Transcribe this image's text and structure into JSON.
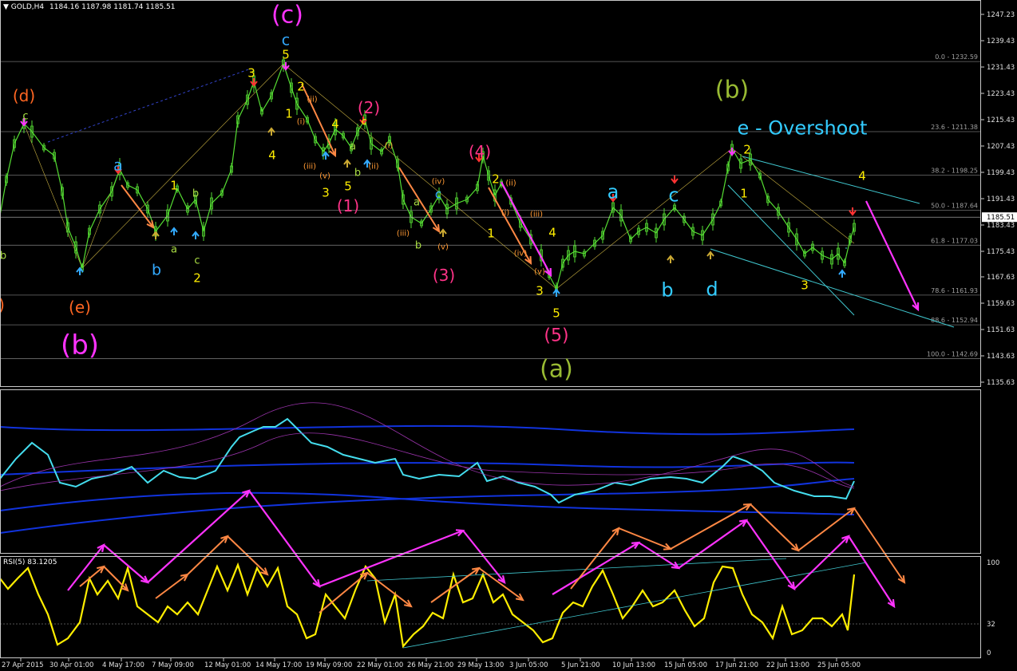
{
  "header": {
    "symbol_label": "GOLD,H4",
    "ohlc": "1184.16 1187.98 1181.74 1185.51",
    "rsi_label": "RSI(5) 83.1205"
  },
  "price_axis": {
    "ticks": [
      "1247.23",
      "1239.43",
      "1231.43",
      "1223.43",
      "1215.43",
      "1207.43",
      "1199.43",
      "1191.43",
      "1183.43",
      "1175.43",
      "1167.63",
      "1159.63",
      "1151.63",
      "1143.63",
      "1135.63"
    ],
    "current_price": "1185.51"
  },
  "rsi_axis": {
    "ticks": [
      "100",
      "32",
      "0"
    ]
  },
  "time_axis": {
    "labels": [
      "27 Apr 2015",
      "30 Apr 01:00",
      "4 May 17:00",
      "7 May 09:00",
      "12 May 01:00",
      "14 May 17:00",
      "19 May 09:00",
      "22 May 01:00",
      "26 May 21:00",
      "29 May 13:00",
      "3 Jun 05:00",
      "5 Jun 21:00",
      "10 Jun 13:00",
      "15 Jun 05:00",
      "17 Jun 21:00",
      "22 Jun 13:00",
      "25 Jun 05:00"
    ]
  },
  "fib_levels": [
    {
      "label": "0.0 - 1232.59",
      "price": 1232.59
    },
    {
      "label": "23.6 - 1211.38",
      "price": 1211.38
    },
    {
      "label": "38.2 - 1198.25",
      "price": 1198.25
    },
    {
      "label": "50.0 - 1187.64",
      "price": 1187.64
    },
    {
      "label": "61.8 - 1177.03",
      "price": 1177.03
    },
    {
      "label": "78.6 - 1161.93",
      "price": 1161.93
    },
    {
      "label": "88.6 - 1152.94",
      "price": 1152.94
    },
    {
      "label": "100.0 - 1142.69",
      "price": 1142.69
    }
  ],
  "wave_labels": [
    {
      "text": "(c)",
      "color": "#ff33ff"
    },
    {
      "text": "c",
      "color": "#33aaff"
    },
    {
      "text": "(d)",
      "color": "#ff6622"
    },
    {
      "text": "c",
      "color": "#aadd44"
    },
    {
      "text": "a",
      "color": "#33aaff"
    },
    {
      "text": "(e)",
      "color": "#ff6622"
    },
    {
      "text": "(b)",
      "color": "#ff33ff"
    },
    {
      "text": "b",
      "color": "#33aaff"
    },
    {
      "text": "a",
      "color": "#aadd44"
    },
    {
      "text": "1",
      "color": "#ffee00"
    },
    {
      "text": "b",
      "color": "#aadd44"
    },
    {
      "text": "c",
      "color": "#aadd44"
    },
    {
      "text": "2",
      "color": "#ffee00"
    },
    {
      "text": "3",
      "color": "#ffee00"
    },
    {
      "text": "5",
      "color": "#ffee00"
    },
    {
      "text": "2",
      "color": "#ffee00"
    },
    {
      "text": "1",
      "color": "#ffee00"
    },
    {
      "text": "4",
      "color": "#ffee00"
    },
    {
      "text": "(i)",
      "color": "#ff9933"
    },
    {
      "text": "(ii)",
      "color": "#ff9933"
    },
    {
      "text": "(iii)",
      "color": "#ff9933"
    },
    {
      "text": "(v)",
      "color": "#ff9933"
    },
    {
      "text": "3",
      "color": "#ffee00"
    },
    {
      "text": "4",
      "color": "#ffee00"
    },
    {
      "text": "5",
      "color": "#ffee00"
    },
    {
      "text": "a",
      "color": "#aadd44"
    },
    {
      "text": "b",
      "color": "#aadd44"
    },
    {
      "text": "(1)",
      "color": "#ff3388"
    },
    {
      "text": "(2)",
      "color": "#ff3388"
    },
    {
      "text": "c",
      "color": "#ffee00"
    },
    {
      "text": "(i)",
      "color": "#ff9933"
    },
    {
      "text": "(ii)",
      "color": "#ff9933"
    },
    {
      "text": "(iii)",
      "color": "#ff9933"
    },
    {
      "text": "a",
      "color": "#aadd44"
    },
    {
      "text": "b",
      "color": "#aadd44"
    },
    {
      "text": "c",
      "color": "#33aaff"
    },
    {
      "text": "(iv)",
      "color": "#ff9933"
    },
    {
      "text": "(v)",
      "color": "#ff9933"
    },
    {
      "text": "(3)",
      "color": "#ff3388"
    },
    {
      "text": "(4)",
      "color": "#ff3388"
    },
    {
      "text": "2",
      "color": "#ffee00"
    },
    {
      "text": "(ii)",
      "color": "#ff9933"
    },
    {
      "text": "(i)",
      "color": "#ff9933"
    },
    {
      "text": "(iii)",
      "color": "#ff9933"
    },
    {
      "text": "1",
      "color": "#ffee00"
    },
    {
      "text": "(iv)",
      "color": "#ff9933"
    },
    {
      "text": "(v)",
      "color": "#ff9933"
    },
    {
      "text": "4",
      "color": "#ffee00"
    },
    {
      "text": "3",
      "color": "#ffee00"
    },
    {
      "text": "5",
      "color": "#ffee00"
    },
    {
      "text": "(5)",
      "color": "#ff3388"
    },
    {
      "text": "(a)",
      "color": "#99bb33"
    },
    {
      "text": "a",
      "color": "#33ccff"
    },
    {
      "text": "c",
      "color": "#33ccff"
    },
    {
      "text": "b",
      "color": "#33ccff"
    },
    {
      "text": "d",
      "color": "#33ccff"
    },
    {
      "text": "(b)",
      "color": "#99bb33"
    },
    {
      "text": "e - Overshoot",
      "color": "#33ccff"
    },
    {
      "text": "2",
      "color": "#ffee00"
    },
    {
      "text": "1",
      "color": "#ffee00"
    },
    {
      "text": "4",
      "color": "#ffee00"
    },
    {
      "text": "3",
      "color": "#ffee00"
    },
    {
      "text": "b",
      "color": "#aadd44"
    },
    {
      "text": ")",
      "color": "#ff6622"
    }
  ],
  "colors": {
    "background": "#000000",
    "bull_candle": "#55dd33",
    "grid_line": "#707070",
    "rsi_line": "#ffee00",
    "indicator_line": "#44ddee",
    "band_line": "#1133dd",
    "magenta_arrow": "#ff33ff",
    "orange_arrow": "#ff8844",
    "price_marker_bg": "#ffffff"
  }
}
